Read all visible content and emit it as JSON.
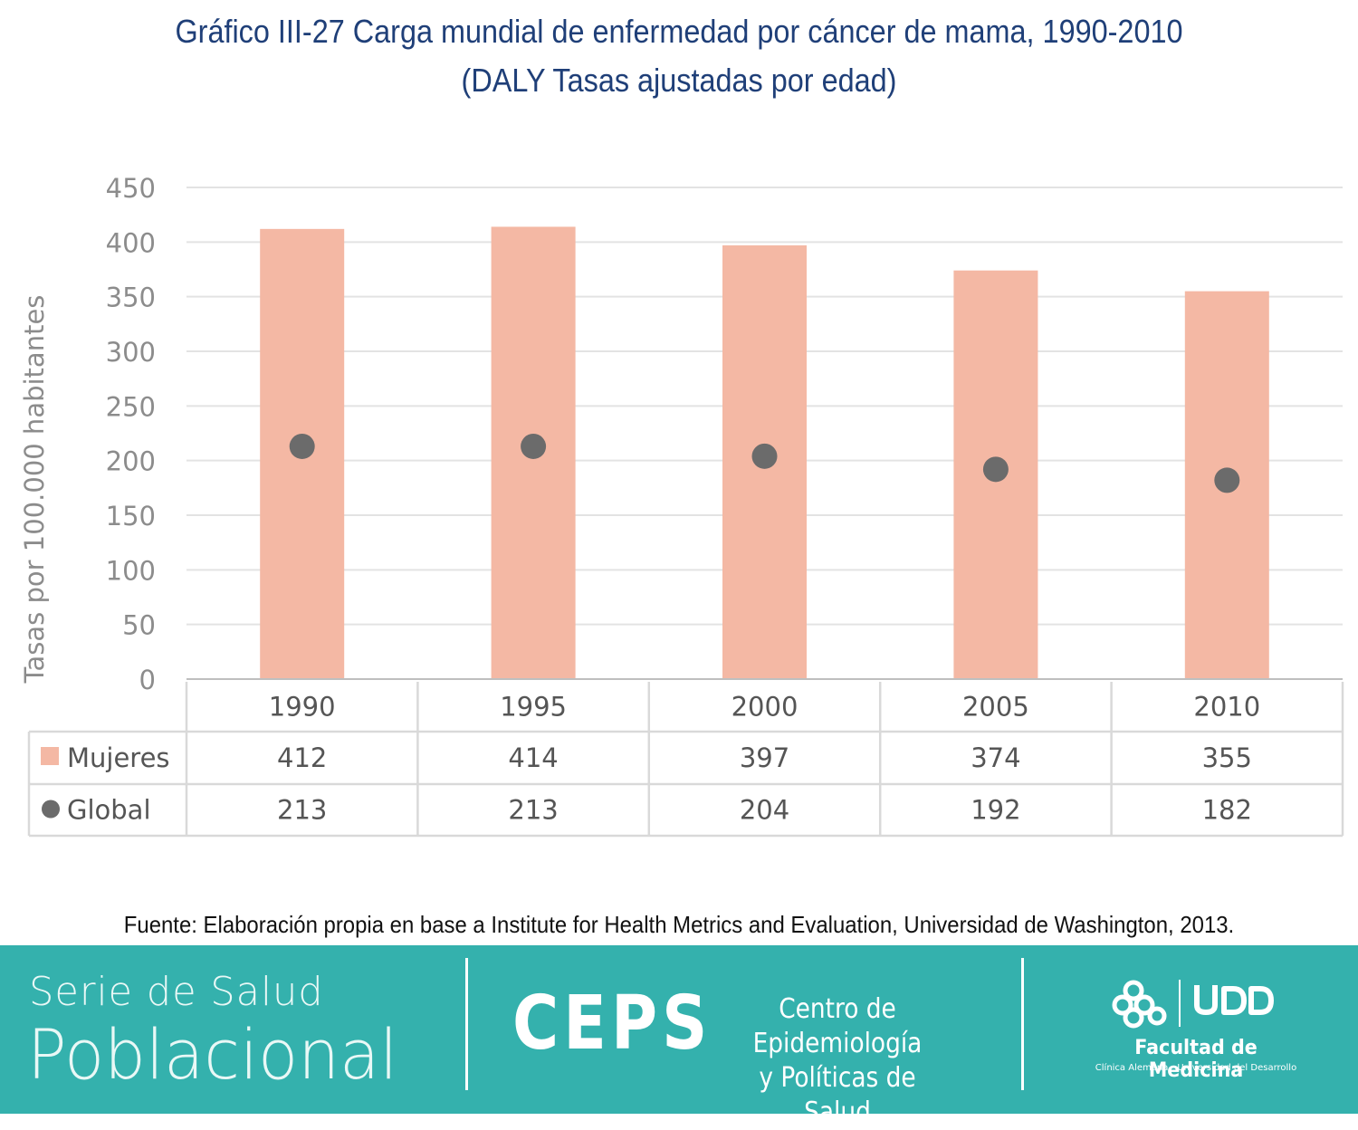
{
  "title_line1": "Gráfico III-27 Carga mundial de enfermedad por cáncer de mama, 1990-2010",
  "title_line2": "(DALY Tasas ajustadas por edad)",
  "source": "Fuente: Elaboración propia en base a Institute for Health Metrics and Evaluation, Universidad de Washington, 2013.",
  "footer": {
    "serie_top": "Serie de Salud",
    "serie_bottom": "Poblacional",
    "ceps": "CEPS",
    "ceps_line1": "Centro de Epidemiología",
    "ceps_line2": "y Políticas de Salud",
    "udd": "UDD",
    "faculty": "Facultad de Medicina",
    "faculty_sub": "Clínica Alemana - Universidad del Desarrollo",
    "background_color": "#34b1ad"
  },
  "chart_data": {
    "type": "bar",
    "ylabel": "Tasas por 100.000 habitantes",
    "ylim": [
      0,
      450
    ],
    "yticks": [
      0,
      50,
      100,
      150,
      200,
      250,
      300,
      350,
      400,
      450
    ],
    "grid": true,
    "legend_placement": "data-table-below",
    "categories": [
      "1990",
      "1995",
      "2000",
      "2005",
      "2010"
    ],
    "series": [
      {
        "name": "Mujeres",
        "type": "bar",
        "color": "#f4b8a4",
        "values": [
          412,
          414,
          397,
          374,
          355
        ]
      },
      {
        "name": "Global",
        "type": "scatter",
        "color": "#6b6b6b",
        "values": [
          213,
          213,
          204,
          192,
          182
        ]
      }
    ]
  }
}
